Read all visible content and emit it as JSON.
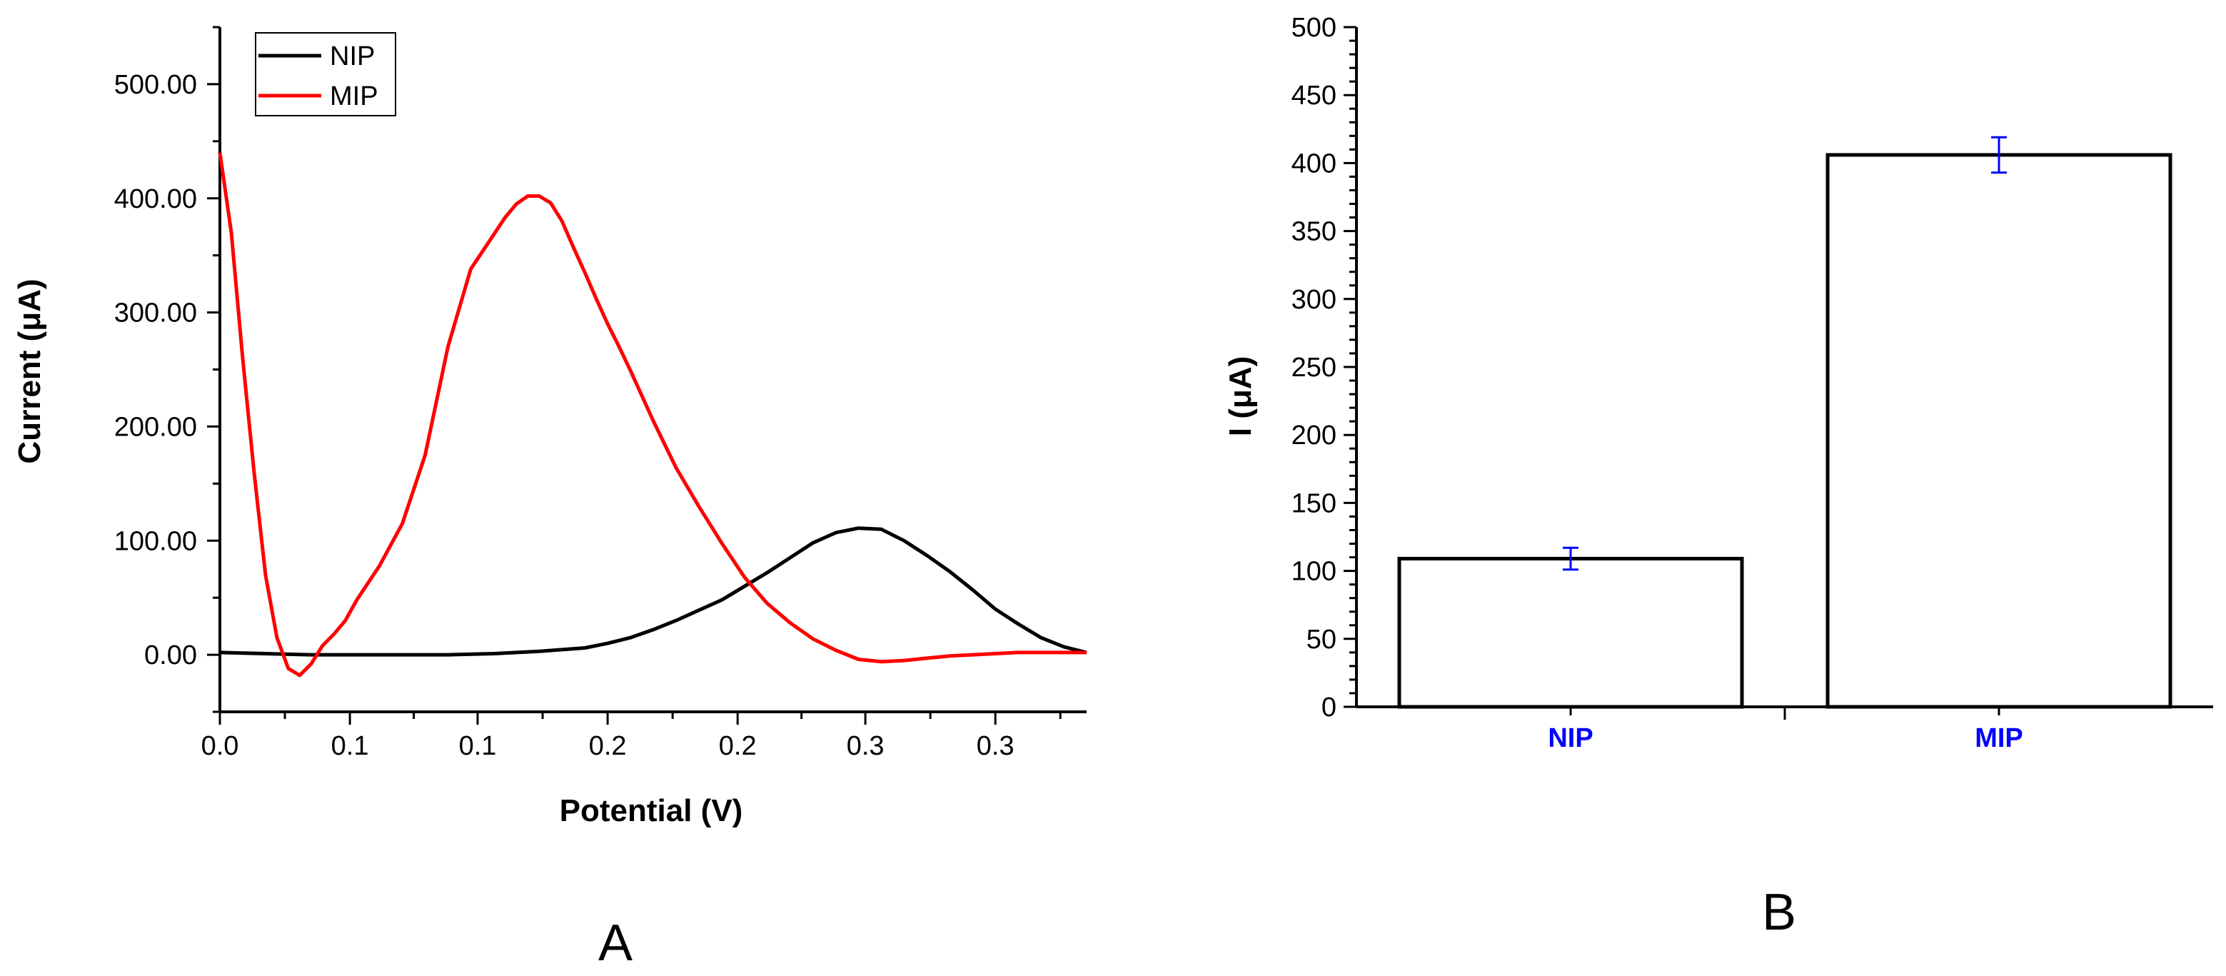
{
  "chart_data": [
    {
      "type": "line",
      "panel_label": "A",
      "xlabel": "Potential (V)",
      "ylabel": "Current (μA)",
      "xlim": [
        0.0,
        0.38
      ],
      "ylim": [
        -50,
        550
      ],
      "x_ticks": [
        0.0,
        0.057,
        0.113,
        0.17,
        0.227,
        0.283,
        0.34
      ],
      "x_tick_labels": [
        "0.0",
        "0.1",
        "0.1",
        "0.2",
        "0.2",
        "0.3",
        "0.3"
      ],
      "y_ticks": [
        0,
        100,
        200,
        300,
        400,
        500
      ],
      "y_tick_labels": [
        "0.00",
        "100.00",
        "200.00",
        "300.00",
        "400.00",
        "500.00"
      ],
      "legend_position": "top-left",
      "series": [
        {
          "name": "NIP",
          "color": "#000000",
          "x": [
            0.0,
            0.02,
            0.04,
            0.06,
            0.08,
            0.1,
            0.12,
            0.14,
            0.16,
            0.17,
            0.18,
            0.19,
            0.2,
            0.21,
            0.22,
            0.23,
            0.24,
            0.25,
            0.26,
            0.27,
            0.28,
            0.29,
            0.3,
            0.31,
            0.32,
            0.33,
            0.34,
            0.35,
            0.36,
            0.37,
            0.38
          ],
          "y": [
            2,
            1,
            0,
            0,
            0,
            0,
            1,
            3,
            6,
            10,
            15,
            22,
            30,
            39,
            48,
            60,
            72,
            85,
            98,
            107,
            111,
            110,
            100,
            87,
            73,
            57,
            40,
            27,
            15,
            7,
            2
          ]
        },
        {
          "name": "MIP",
          "color": "#ff0000",
          "x": [
            0.0,
            0.005,
            0.01,
            0.015,
            0.02,
            0.025,
            0.03,
            0.035,
            0.04,
            0.045,
            0.05,
            0.055,
            0.06,
            0.07,
            0.08,
            0.09,
            0.1,
            0.11,
            0.12,
            0.125,
            0.13,
            0.135,
            0.14,
            0.145,
            0.15,
            0.155,
            0.16,
            0.165,
            0.17,
            0.175,
            0.18,
            0.19,
            0.2,
            0.21,
            0.22,
            0.23,
            0.24,
            0.25,
            0.26,
            0.27,
            0.28,
            0.29,
            0.3,
            0.31,
            0.32,
            0.33,
            0.34,
            0.35,
            0.36,
            0.37,
            0.38
          ],
          "y": [
            440,
            370,
            260,
            160,
            70,
            15,
            -12,
            -18,
            -8,
            8,
            18,
            30,
            48,
            78,
            115,
            175,
            270,
            338,
            368,
            383,
            395,
            402,
            402,
            396,
            380,
            357,
            335,
            312,
            290,
            270,
            249,
            205,
            164,
            130,
            98,
            68,
            45,
            28,
            14,
            4,
            -4,
            -6,
            -5,
            -3,
            -1,
            0,
            1,
            2,
            2,
            2,
            2
          ]
        }
      ]
    },
    {
      "type": "bar",
      "panel_label": "B",
      "xlabel": "",
      "ylabel": "I (μA)",
      "ylim": [
        0,
        500
      ],
      "y_ticks": [
        0,
        50,
        100,
        150,
        200,
        250,
        300,
        350,
        400,
        450,
        500
      ],
      "y_tick_labels": [
        "0",
        "50",
        "100",
        "150",
        "200",
        "250",
        "300",
        "350",
        "400",
        "450",
        "500"
      ],
      "categories": [
        "NIP",
        "MIP"
      ],
      "values": [
        109,
        406
      ],
      "errors": [
        8,
        13
      ],
      "bar_fill": "#ffffff",
      "bar_edge": "#000000",
      "error_color": "#0000ff",
      "category_label_color": "#0000ff"
    }
  ]
}
